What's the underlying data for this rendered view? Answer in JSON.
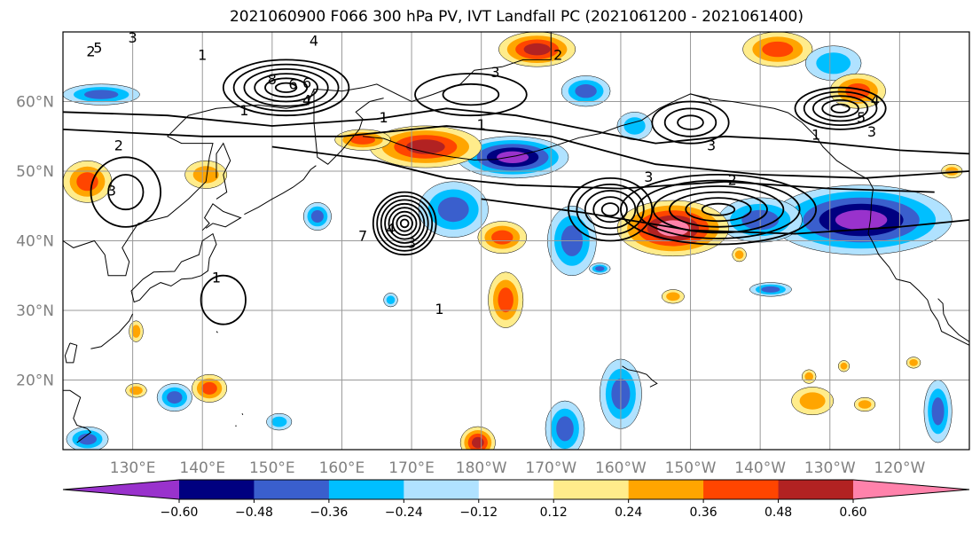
{
  "title": "2021060900 F066 300 hPa PV, IVT Landfall PC (2021061200 - 2021061400)",
  "map": {
    "projection": "PlateCarree",
    "lon_range_deg_east": [
      120,
      250
    ],
    "lat_range_deg_north": [
      10,
      70
    ],
    "lat_ticks": [
      {
        "lat": 60,
        "label": "60°N"
      },
      {
        "lat": 50,
        "label": "50°N"
      },
      {
        "lat": 40,
        "label": "40°N"
      },
      {
        "lat": 30,
        "label": "30°N"
      },
      {
        "lat": 20,
        "label": "20°N"
      }
    ],
    "lon_ticks": [
      {
        "lon": 130,
        "label": "130°E"
      },
      {
        "lon": 140,
        "label": "140°E"
      },
      {
        "lon": 150,
        "label": "150°E"
      },
      {
        "lon": 160,
        "label": "160°E"
      },
      {
        "lon": 170,
        "label": "170°E"
      },
      {
        "lon": 180,
        "label": "180°W"
      },
      {
        "lon": 190,
        "label": "170°W"
      },
      {
        "lon": 200,
        "label": "160°W"
      },
      {
        "lon": 210,
        "label": "150°W"
      },
      {
        "lon": 220,
        "label": "140°W"
      },
      {
        "lon": 230,
        "label": "130°W"
      },
      {
        "lon": 240,
        "label": "120°W"
      }
    ],
    "gridlines": true,
    "gridline_color": "#999999",
    "coastline_color": "#000000"
  },
  "colorbar": {
    "orientation": "horizontal",
    "extend": "both",
    "boundaries": [
      -0.72,
      -0.6,
      -0.48,
      -0.36,
      -0.24,
      -0.12,
      0.12,
      0.24,
      0.36,
      0.48,
      0.6,
      0.72
    ],
    "colors": [
      "#9932CC",
      "#000080",
      "#3A5FCD",
      "#00BFFF",
      "#B0E2FF",
      "#FFFFFF",
      "#FFEC8B",
      "#FFA500",
      "#FF4500",
      "#B22222",
      "#FF82AB"
    ],
    "tick_labels": [
      "−0.60",
      "−0.48",
      "−0.36",
      "−0.24",
      "−0.12",
      "0.12",
      "0.24",
      "0.36",
      "0.48",
      "0.60"
    ]
  },
  "contour_labels": [
    "1",
    "2",
    "3",
    "4",
    "5",
    "6",
    "7",
    "8"
  ],
  "contour_color": "#000000"
}
